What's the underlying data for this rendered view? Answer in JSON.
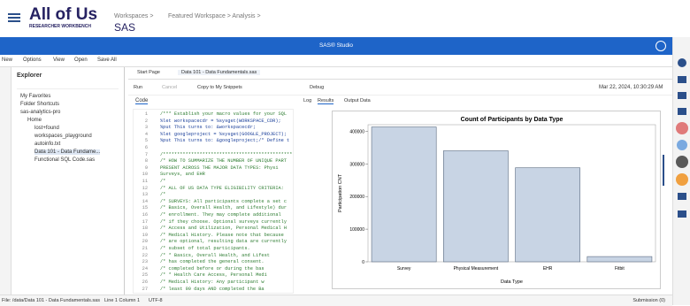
{
  "header": {
    "logo": "All of Us",
    "logo_sub": "RESEARCHER WORKBENCH",
    "breadcrumb": [
      "Workspaces >",
      "Featured Workspace > Analysis >"
    ],
    "title": "SAS"
  },
  "app_bar": "SAS® Studio",
  "menu": [
    "New",
    "Options",
    "View",
    "Open",
    "Save All"
  ],
  "explorer": {
    "title": "Explorer",
    "tree": [
      {
        "label": "My Favorites"
      },
      {
        "label": "Folder Shortcuts"
      },
      {
        "label": "sas-analytics-pro",
        "children": [
          {
            "label": "Home",
            "children": [
              {
                "label": "lost+found"
              },
              {
                "label": "workspaces_playground"
              },
              {
                "label": "autoinfo.txt"
              },
              {
                "label": "Data 101 - Data Fundame..."
              },
              {
                "label": "Functional SQL Code.sas"
              }
            ]
          }
        ]
      }
    ]
  },
  "tabs": [
    "Start Page",
    "Data 101 - Data Fundamentals.sas"
  ],
  "toolbar": {
    "buttons": [
      "Run",
      "Cancel",
      "Copy to My Snippets",
      "Debug"
    ],
    "timestamp": "Mar 22, 2024, 10:30:29 AM"
  },
  "code_tab": "Code",
  "results_tabs": [
    "Log",
    "Results",
    "Output Data"
  ],
  "code": [
    {
      "n": 1,
      "text": "/*** Establish your macro values for your SQL"
    },
    {
      "n": 2,
      "text": "%let workspacecdr = %sysget(WORKSPACE_CDR);"
    },
    {
      "n": 3,
      "text": "%put This turns to: &workspacecdr;"
    },
    {
      "n": 4,
      "text": "%let googleproject = %sysget(GOOGLE_PROJECT);"
    },
    {
      "n": 5,
      "text": "%put This turns to: &googleproject;/* Define t"
    },
    {
      "n": 6
    },
    {
      "n": 7,
      "text": "/*************************************************"
    },
    {
      "n": 8,
      "text": "/*  HOW TO SUMMARIZE THE NUMBER OF UNIQUE PART"
    },
    {
      "n": 9,
      "text": "    PRESENT ACROSS THE MAJOR DATA TYPES: Physi"
    },
    {
      "n": 10,
      "text": "    Surveys, and EHR"
    },
    {
      "n": 11,
      "text": "/*"
    },
    {
      "n": 12,
      "text": "/*  ALL OF US DATA TYPE ELIGIBILITY CRITERIA:"
    },
    {
      "n": 13,
      "text": "/*"
    },
    {
      "n": 14,
      "text": "/*  SURVEYS: All participants complete a set c"
    },
    {
      "n": 15,
      "text": "/*  Basics, Overall Health, and Lifestyle) dur"
    },
    {
      "n": 16,
      "text": "/*  enrollment. They may complete additional"
    },
    {
      "n": 17,
      "text": "/*  if they choose. Optional surveys currently"
    },
    {
      "n": 18,
      "text": "/*  Access and Utilization, Personal Medical H"
    },
    {
      "n": 19,
      "text": "/*  Medical History. Please note that because"
    },
    {
      "n": 20,
      "text": "/*  are optional, resulting data are currently"
    },
    {
      "n": 21,
      "text": "/*  subset of total participants."
    },
    {
      "n": 22,
      "text": "/*      *   Basics, Overall Health, and Lifest"
    },
    {
      "n": 23,
      "text": "/*          has completed the general consent."
    },
    {
      "n": 24,
      "text": "/*          completed before or during the bas"
    },
    {
      "n": 25,
      "text": "/*      *   Health Care Access, Personal Medi"
    },
    {
      "n": 26,
      "text": "/*          Medical History: Any participant w"
    },
    {
      "n": 27,
      "text": "/*          least 90 days AND completed the Ba"
    }
  ],
  "status": {
    "items": [
      "File: /data/Data 101 - Data Fundamentals.sas",
      "Line 1 Column 1",
      "UTF-8"
    ],
    "submission": "Submission (0)"
  },
  "chart_data": {
    "type": "bar",
    "title": "Count of Participants by Data Type",
    "x_label": "Data Type",
    "y_label": "Participation CNT",
    "categories": [
      "Survey",
      "Physical Measurement",
      "EHR",
      "Fitbit"
    ],
    "values": [
      413000,
      340000,
      288000,
      16000
    ],
    "color": "#c8d4e4",
    "ylim": [
      0,
      420000
    ],
    "yticks": [
      0,
      100000,
      200000,
      300000,
      400000
    ]
  }
}
